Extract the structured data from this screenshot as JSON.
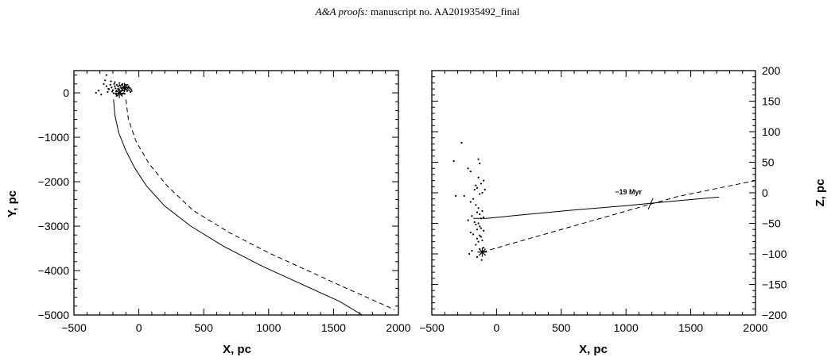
{
  "header": {
    "journal_italic": "A&A proofs:",
    "manuscript": "manuscript no. AA201935492_final"
  },
  "chart_data": [
    {
      "type": "line",
      "title": "",
      "xlabel": "X, pc",
      "ylabel": "Y, pc",
      "xlim": [
        -500,
        2000
      ],
      "ylim": [
        -5000,
        500
      ],
      "xticks": [
        -500,
        0,
        500,
        1000,
        1500,
        2000
      ],
      "yticks": [
        0,
        -1000,
        -2000,
        -3000,
        -4000,
        -5000
      ],
      "grid": false,
      "legend": "none",
      "series": [
        {
          "style": "solid",
          "x": [
            -195,
            -185,
            -155,
            -100,
            -30,
            60,
            200,
            400,
            650,
            950,
            1250,
            1550,
            1720
          ],
          "y": [
            -150,
            -500,
            -900,
            -1300,
            -1700,
            -2100,
            -2550,
            -3000,
            -3450,
            -3900,
            -4300,
            -4700,
            -5000
          ]
        },
        {
          "style": "dashed",
          "x": [
            -100,
            -80,
            -20,
            80,
            220,
            420,
            700,
            1000,
            1300,
            1600,
            1970
          ],
          "y": [
            -150,
            -600,
            -1100,
            -1600,
            -2100,
            -2650,
            -3150,
            -3600,
            -4000,
            -4400,
            -4880
          ]
        },
        {
          "style": "points",
          "x": [
            -330,
            -310,
            -290,
            -270,
            -260,
            -250,
            -240,
            -230,
            -220,
            -210,
            -200,
            -195,
            -190,
            -185,
            -180,
            -175,
            -170,
            -165,
            -160,
            -155,
            -150,
            -145,
            -140,
            -135,
            -130,
            -125,
            -120,
            -115,
            -110,
            -105,
            -100,
            -95,
            -90,
            -85,
            -80,
            -75,
            -70,
            -65,
            -60,
            -55,
            -250,
            -235,
            -215,
            -205,
            -185,
            -175,
            -160,
            -150,
            -140,
            -130,
            -120
          ],
          "y": [
            0,
            50,
            -40,
            200,
            280,
            150,
            20,
            80,
            180,
            120,
            60,
            -10,
            200,
            240,
            100,
            30,
            180,
            -60,
            140,
            60,
            220,
            10,
            160,
            100,
            -30,
            200,
            50,
            140,
            -20,
            80,
            180,
            120,
            40,
            100,
            150,
            60,
            110,
            20,
            80,
            40,
            400,
            90,
            260,
            30,
            150,
            -40,
            90,
            170,
            40,
            110,
            -10
          ]
        }
      ],
      "markers": [
        {
          "name": "sun-asterisk",
          "x": -110,
          "y": 120
        },
        {
          "name": "cluster-star",
          "x": -150,
          "y": -10
        }
      ]
    },
    {
      "type": "line",
      "title": "",
      "xlabel": "X, pc",
      "ylabel": "Z, pc",
      "xlim": [
        -500,
        2000
      ],
      "ylim": [
        -200,
        200
      ],
      "xticks": [
        -500,
        0,
        500,
        1000,
        1500,
        2000
      ],
      "yticks": [
        200,
        150,
        100,
        50,
        0,
        -50,
        -100,
        -150,
        -200
      ],
      "yaxis_side": "right",
      "grid": false,
      "legend": "none",
      "annotation": "−19 Myr",
      "annotation_at": {
        "x": 1190,
        "z": -18
      },
      "series": [
        {
          "style": "solid",
          "x": [
            -180,
            -80,
            200,
            600,
            1000,
            1400,
            1720
          ],
          "y": [
            -42,
            -42,
            -36,
            -28,
            -21,
            -13,
            -7
          ]
        },
        {
          "style": "dashed",
          "x": [
            -110,
            200,
            600,
            1000,
            1400,
            2000
          ],
          "y": [
            -97,
            -78,
            -54,
            -30,
            -6,
            20
          ]
        },
        {
          "style": "points",
          "x": [
            -270,
            -330,
            -250,
            -315,
            -140,
            -130,
            -220,
            -200,
            -160,
            -100,
            -170,
            -140,
            -120,
            -150,
            -110,
            -130,
            -180,
            -90,
            -200,
            -160,
            -140,
            -110,
            -150,
            -130,
            -190,
            -220,
            -100,
            -120,
            -170,
            -140,
            -160,
            -130,
            -120,
            -150,
            -100,
            -200,
            -180,
            -130,
            -120,
            -150,
            -110,
            -140,
            -160,
            -100,
            -130,
            -190,
            -210,
            -150,
            -115
          ],
          "y": [
            82,
            52,
            -5,
            -5,
            55,
            48,
            40,
            35,
            12,
            20,
            5,
            25,
            15,
            8,
            0,
            -2,
            -10,
            5,
            -15,
            -20,
            -25,
            -30,
            -32,
            -35,
            -38,
            -45,
            -40,
            -42,
            -48,
            -50,
            -52,
            -55,
            -58,
            -60,
            -62,
            -65,
            -68,
            -70,
            -72,
            -75,
            -78,
            -80,
            -85,
            -90,
            -92,
            -95,
            -100,
            -105,
            -110
          ]
        }
      ],
      "markers": [
        {
          "name": "sun-asterisk",
          "x": -110,
          "y": -97
        }
      ]
    }
  ]
}
